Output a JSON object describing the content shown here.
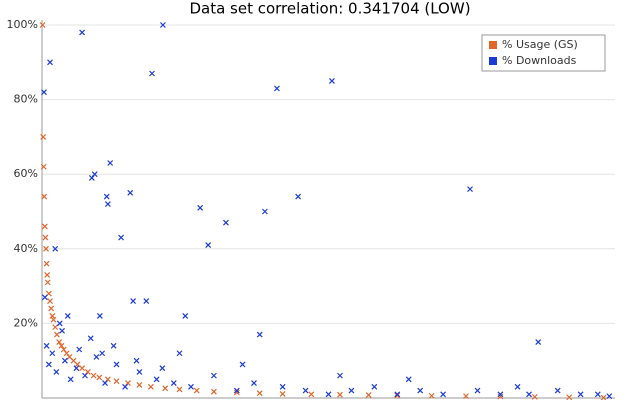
{
  "chart_data": {
    "type": "scatter",
    "title": "Data set correlation: 0.341704 (LOW)",
    "xlim": [
      0,
      1000
    ],
    "ylim": [
      0,
      100
    ],
    "yticks": [
      {
        "value": 20,
        "label": "20%"
      },
      {
        "value": 40,
        "label": "40%"
      },
      {
        "value": 60,
        "label": "60%"
      },
      {
        "value": 80,
        "label": "80%"
      },
      {
        "value": 100,
        "label": "100%"
      }
    ],
    "grid": true,
    "legend": "upper-right",
    "series": [
      {
        "name": "% Usage (GS)",
        "color": "#e0662a",
        "x": [
          1,
          2,
          3,
          4,
          5,
          6,
          7,
          8,
          9,
          10,
          12,
          14,
          16,
          18,
          20,
          23,
          26,
          30,
          34,
          38,
          43,
          48,
          55,
          62,
          70,
          80,
          90,
          100,
          115,
          130,
          150,
          170,
          190,
          215,
          240,
          270,
          300,
          340,
          380,
          420,
          470,
          520,
          570,
          620,
          680,
          740,
          800,
          860,
          920,
          980
        ],
        "values": [
          100,
          70,
          62,
          54,
          46,
          43,
          40,
          36,
          33,
          31,
          28,
          26,
          24,
          22,
          21,
          19,
          17,
          15,
          14,
          13,
          12,
          11,
          10,
          9,
          8,
          7,
          6,
          5.5,
          5,
          4.5,
          4,
          3.5,
          3,
          2.6,
          2.3,
          2,
          1.7,
          1.5,
          1.3,
          1.1,
          1,
          0.9,
          0.8,
          0.7,
          0.6,
          0.5,
          0.4,
          0.3,
          0.2,
          0.1
        ]
      },
      {
        "name": "% Downloads",
        "color": "#1a3bd6",
        "x": [
          3.5,
          14,
          70,
          211,
          192,
          410,
          506,
          87,
          92,
          119,
          154,
          113,
          115,
          276,
          290,
          321,
          389,
          447,
          747,
          138,
          23,
          5,
          159,
          182,
          101,
          250,
          380,
          866,
          31,
          8,
          12,
          18,
          25,
          40,
          50,
          60,
          75,
          95,
          110,
          130,
          145,
          170,
          200,
          230,
          260,
          300,
          340,
          370,
          420,
          460,
          500,
          540,
          580,
          620,
          660,
          700,
          760,
          800,
          850,
          900,
          940,
          970,
          990,
          35,
          45,
          65,
          85,
          105,
          125,
          165,
          210,
          240,
          350,
          520,
          640,
          830
        ],
        "values": [
          82,
          90,
          98,
          100,
          87,
          83,
          85,
          59,
          60,
          63,
          55,
          54,
          52,
          51,
          41,
          47,
          50,
          54,
          56,
          43,
          40,
          27,
          26,
          26,
          22,
          22,
          17,
          15,
          20,
          14,
          9,
          12,
          7,
          10,
          5,
          8,
          6,
          11,
          4,
          9,
          3,
          7,
          5,
          4,
          3,
          6,
          2,
          4,
          3,
          2,
          1,
          2,
          3,
          1,
          2,
          1,
          2,
          1,
          1,
          2,
          1,
          1,
          0.5,
          18,
          22,
          13,
          16,
          12,
          14,
          10,
          8,
          12,
          9,
          6,
          5,
          3
        ]
      }
    ]
  }
}
